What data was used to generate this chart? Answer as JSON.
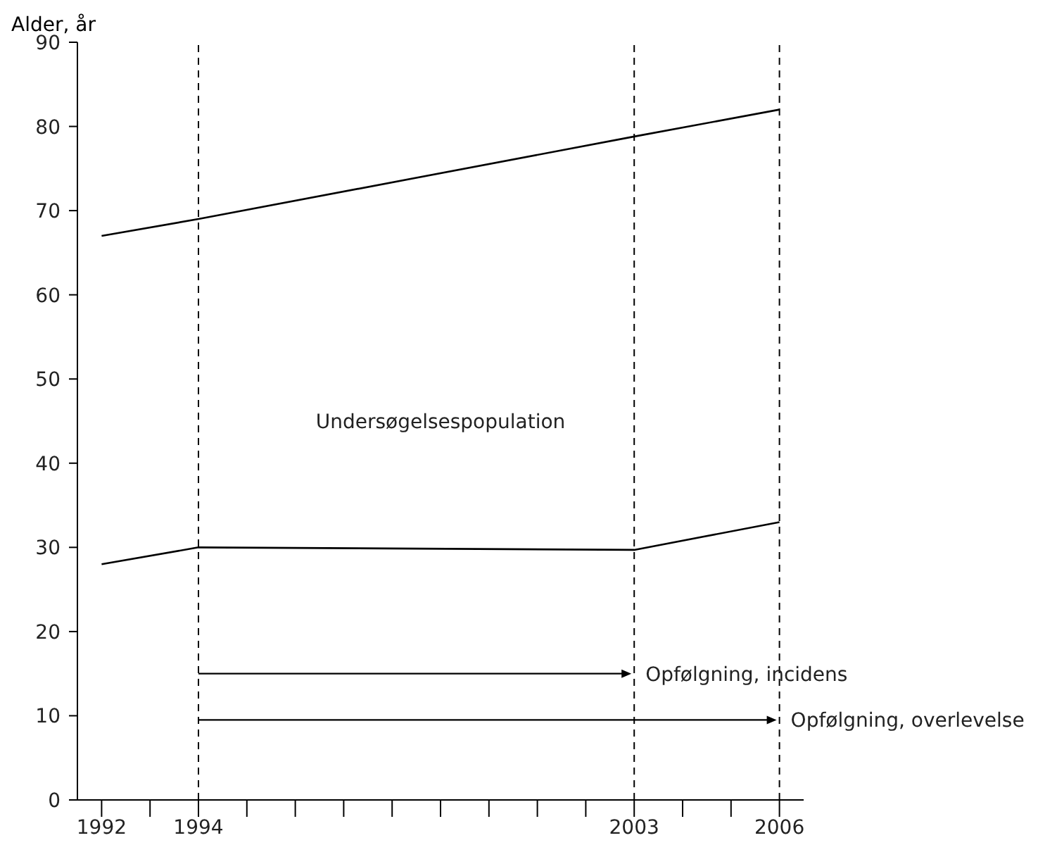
{
  "chart_data": {
    "type": "line",
    "ylabel": "Alder, år",
    "x": [
      1992,
      1994,
      2003,
      2006
    ],
    "series": [
      {
        "color": "#000000",
        "values": [
          67,
          69,
          78.8,
          82
        ]
      },
      {
        "color": "#000000",
        "values": [
          28,
          30,
          29.7,
          33
        ]
      }
    ],
    "marker": "none",
    "line_style": "solid",
    "grid": false,
    "xlim": [
      1991.5,
      2006.5
    ],
    "xticks": [
      1992,
      {
        "value": 1993,
        "label": null
      },
      1994,
      {
        "value": 1995,
        "label": null
      },
      {
        "value": 1996,
        "label": null
      },
      {
        "value": 1997,
        "label": null
      },
      {
        "value": 1998,
        "label": null
      },
      {
        "value": 1999,
        "label": null
      },
      {
        "value": 2000,
        "label": null
      },
      {
        "value": 2001,
        "label": null
      },
      {
        "value": 2002,
        "label": null
      },
      2003,
      {
        "value": 2004,
        "label": null
      },
      {
        "value": 2005,
        "label": null
      },
      2006
    ],
    "ylim": [
      0,
      90
    ],
    "yticks": [
      0,
      10,
      20,
      30,
      40,
      50,
      60,
      70,
      80,
      90
    ],
    "ref_lines": [
      {
        "axis": "x",
        "value": 1994,
        "line_style": "dashed",
        "color": "#000000"
      },
      {
        "axis": "x",
        "value": 2003,
        "line_style": "dashed",
        "color": "#000000"
      },
      {
        "axis": "x",
        "value": 2006,
        "line_style": "dashed",
        "color": "#000000"
      }
    ],
    "annotations": [
      "Undersøgelsespopulation",
      {
        "text": "Opfølgning, incidens",
        "x": 2003,
        "y": 15
      },
      {
        "text": "Opfølgning, overlevelse",
        "x": 2006,
        "y": 9.5
      }
    ]
  }
}
